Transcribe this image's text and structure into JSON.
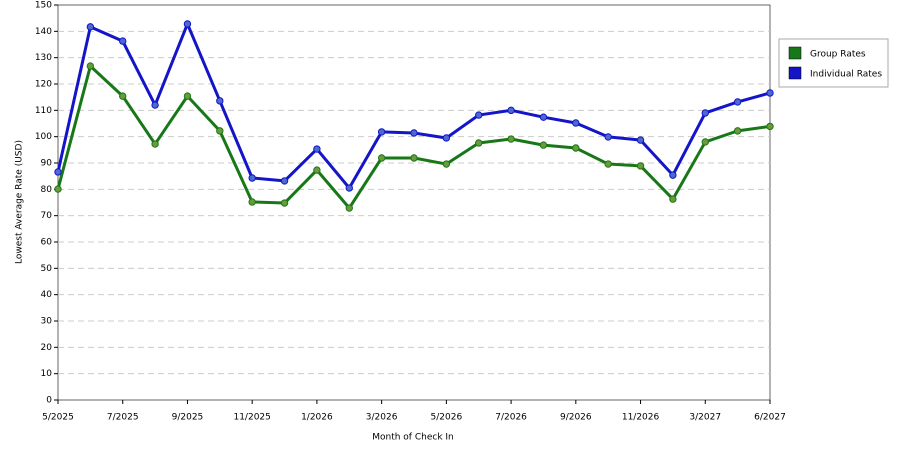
{
  "chart_data": {
    "type": "line",
    "x_label": "Month of Check In",
    "y_label": "Lowest Average Rate (USD)",
    "categories": [
      "5/2025",
      null,
      "7/2025",
      null,
      "9/2025",
      null,
      "11/2025",
      null,
      "1/2026",
      null,
      "3/2026",
      null,
      "5/2026",
      null,
      "7/2026",
      null,
      "9/2026",
      null,
      "11/2026",
      null,
      "3/2027",
      null,
      "6/2027"
    ],
    "series": [
      {
        "name": "Group Rates",
        "color": "#187818",
        "marker_color": "#6a9a3a",
        "values": [
          80.1,
          126.8,
          115.4,
          97.2,
          115.4,
          102.2,
          75.2,
          74.8,
          87.3,
          72.9,
          91.9,
          91.9,
          89.6,
          97.6,
          99.1,
          96.8,
          95.7,
          89.6,
          88.9,
          76.3,
          98,
          102.2,
          103.9
        ]
      },
      {
        "name": "Individual Rates",
        "color": "#1414c8",
        "marker_color": "#4a6ad0",
        "values": [
          86.6,
          141.7,
          136.3,
          112,
          142.8,
          113.6,
          84.3,
          83.2,
          95.3,
          80.5,
          101.8,
          101.4,
          99.5,
          108.2,
          110,
          107.4,
          105.2,
          99.9,
          98.7,
          85.4,
          109,
          113.2,
          116.6
        ]
      }
    ],
    "ylim": [
      0,
      150
    ],
    "yticks": [
      0,
      10,
      20,
      30,
      40,
      50,
      60,
      70,
      80,
      90,
      100,
      110,
      120,
      130,
      140,
      150
    ],
    "grid": true,
    "legend": "right"
  }
}
